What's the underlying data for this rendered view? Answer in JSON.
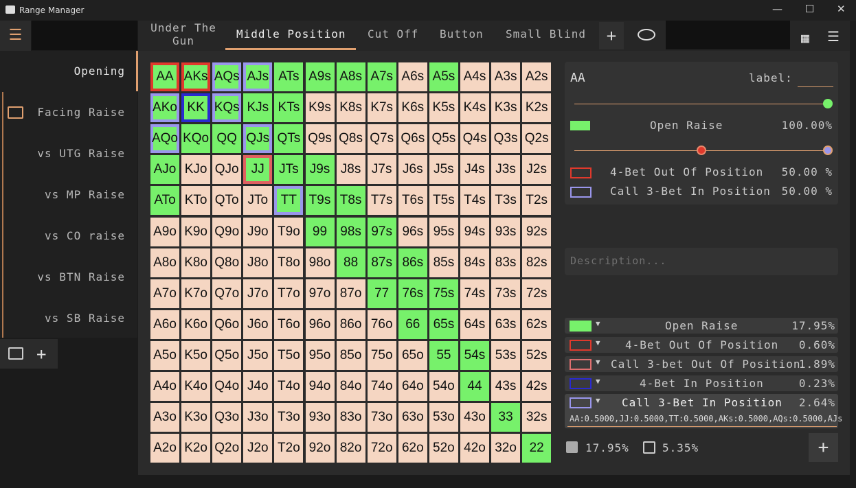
{
  "window": {
    "title": "Range Manager"
  },
  "sidebar": {
    "items": [
      "Opening",
      "Facing Raise",
      "vs UTG Raise",
      "vs MP Raise",
      "vs CO raise",
      "vs BTN Raise",
      "vs SB Raise"
    ]
  },
  "tabs": [
    "Under The Gun",
    "Middle Position",
    "Cut Off",
    "Button",
    "Small Blind"
  ],
  "grid": {
    "open_color": "#77f16b",
    "fold_color": "#f5d6c2",
    "rows": [
      [
        {
          "hand": "AA",
          "open": true,
          "border": "#e0392c"
        },
        {
          "hand": "AKs",
          "open": true,
          "border": "#e0392c"
        },
        {
          "hand": "AQs",
          "open": true,
          "border": "#9a96ec"
        },
        {
          "hand": "AJs",
          "open": true,
          "border": "#9a96ec"
        },
        {
          "hand": "ATs",
          "open": true
        },
        {
          "hand": "A9s",
          "open": true
        },
        {
          "hand": "A8s",
          "open": true
        },
        {
          "hand": "A7s",
          "open": true
        },
        {
          "hand": "A6s",
          "open": false
        },
        {
          "hand": "A5s",
          "open": true
        },
        {
          "hand": "A4s",
          "open": false
        },
        {
          "hand": "A3s",
          "open": false
        },
        {
          "hand": "A2s",
          "open": false
        }
      ],
      [
        {
          "hand": "AKo",
          "open": true,
          "border": "#9a96ec"
        },
        {
          "hand": "KK",
          "open": true,
          "border": "#2a2ad0"
        },
        {
          "hand": "KQs",
          "open": true,
          "border": "#9a96ec"
        },
        {
          "hand": "KJs",
          "open": true
        },
        {
          "hand": "KTs",
          "open": true
        },
        {
          "hand": "K9s",
          "open": false
        },
        {
          "hand": "K8s",
          "open": false
        },
        {
          "hand": "K7s",
          "open": false
        },
        {
          "hand": "K6s",
          "open": false
        },
        {
          "hand": "K5s",
          "open": false
        },
        {
          "hand": "K4s",
          "open": false
        },
        {
          "hand": "K3s",
          "open": false
        },
        {
          "hand": "K2s",
          "open": false
        }
      ],
      [
        {
          "hand": "AQo",
          "open": true,
          "border": "#9a96ec"
        },
        {
          "hand": "KQo",
          "open": true
        },
        {
          "hand": "QQ",
          "open": true
        },
        {
          "hand": "QJs",
          "open": true,
          "border": "#9a96ec"
        },
        {
          "hand": "QTs",
          "open": true
        },
        {
          "hand": "Q9s",
          "open": false
        },
        {
          "hand": "Q8s",
          "open": false
        },
        {
          "hand": "Q7s",
          "open": false
        },
        {
          "hand": "Q6s",
          "open": false
        },
        {
          "hand": "Q5s",
          "open": false
        },
        {
          "hand": "Q4s",
          "open": false
        },
        {
          "hand": "Q3s",
          "open": false
        },
        {
          "hand": "Q2s",
          "open": false
        }
      ],
      [
        {
          "hand": "AJo",
          "open": true
        },
        {
          "hand": "KJo",
          "open": false
        },
        {
          "hand": "QJo",
          "open": false
        },
        {
          "hand": "JJ",
          "open": true,
          "border": "#e06060"
        },
        {
          "hand": "JTs",
          "open": true
        },
        {
          "hand": "J9s",
          "open": true
        },
        {
          "hand": "J8s",
          "open": false
        },
        {
          "hand": "J7s",
          "open": false
        },
        {
          "hand": "J6s",
          "open": false
        },
        {
          "hand": "J5s",
          "open": false
        },
        {
          "hand": "J4s",
          "open": false
        },
        {
          "hand": "J3s",
          "open": false
        },
        {
          "hand": "J2s",
          "open": false
        }
      ],
      [
        {
          "hand": "ATo",
          "open": true
        },
        {
          "hand": "KTo",
          "open": false
        },
        {
          "hand": "QTo",
          "open": false
        },
        {
          "hand": "JTo",
          "open": false
        },
        {
          "hand": "TT",
          "open": true,
          "border": "#9a96ec"
        },
        {
          "hand": "T9s",
          "open": true
        },
        {
          "hand": "T8s",
          "open": true
        },
        {
          "hand": "T7s",
          "open": false
        },
        {
          "hand": "T6s",
          "open": false
        },
        {
          "hand": "T5s",
          "open": false
        },
        {
          "hand": "T4s",
          "open": false
        },
        {
          "hand": "T3s",
          "open": false
        },
        {
          "hand": "T2s",
          "open": false
        }
      ],
      [
        {
          "hand": "A9o",
          "open": false
        },
        {
          "hand": "K9o",
          "open": false
        },
        {
          "hand": "Q9o",
          "open": false
        },
        {
          "hand": "J9o",
          "open": false
        },
        {
          "hand": "T9o",
          "open": false
        },
        {
          "hand": "99",
          "open": true
        },
        {
          "hand": "98s",
          "open": true
        },
        {
          "hand": "97s",
          "open": true
        },
        {
          "hand": "96s",
          "open": false
        },
        {
          "hand": "95s",
          "open": false
        },
        {
          "hand": "94s",
          "open": false
        },
        {
          "hand": "93s",
          "open": false
        },
        {
          "hand": "92s",
          "open": false
        }
      ],
      [
        {
          "hand": "A8o",
          "open": false
        },
        {
          "hand": "K8o",
          "open": false
        },
        {
          "hand": "Q8o",
          "open": false
        },
        {
          "hand": "J8o",
          "open": false
        },
        {
          "hand": "T8o",
          "open": false
        },
        {
          "hand": "98o",
          "open": false
        },
        {
          "hand": "88",
          "open": true
        },
        {
          "hand": "87s",
          "open": true
        },
        {
          "hand": "86s",
          "open": true
        },
        {
          "hand": "85s",
          "open": false
        },
        {
          "hand": "84s",
          "open": false
        },
        {
          "hand": "83s",
          "open": false
        },
        {
          "hand": "82s",
          "open": false
        }
      ],
      [
        {
          "hand": "A7o",
          "open": false
        },
        {
          "hand": "K7o",
          "open": false
        },
        {
          "hand": "Q7o",
          "open": false
        },
        {
          "hand": "J7o",
          "open": false
        },
        {
          "hand": "T7o",
          "open": false
        },
        {
          "hand": "97o",
          "open": false
        },
        {
          "hand": "87o",
          "open": false
        },
        {
          "hand": "77",
          "open": true
        },
        {
          "hand": "76s",
          "open": true
        },
        {
          "hand": "75s",
          "open": true
        },
        {
          "hand": "74s",
          "open": false
        },
        {
          "hand": "73s",
          "open": false
        },
        {
          "hand": "72s",
          "open": false
        }
      ],
      [
        {
          "hand": "A6o",
          "open": false
        },
        {
          "hand": "K6o",
          "open": false
        },
        {
          "hand": "Q6o",
          "open": false
        },
        {
          "hand": "J6o",
          "open": false
        },
        {
          "hand": "T6o",
          "open": false
        },
        {
          "hand": "96o",
          "open": false
        },
        {
          "hand": "86o",
          "open": false
        },
        {
          "hand": "76o",
          "open": false
        },
        {
          "hand": "66",
          "open": true
        },
        {
          "hand": "65s",
          "open": true
        },
        {
          "hand": "64s",
          "open": false
        },
        {
          "hand": "63s",
          "open": false
        },
        {
          "hand": "62s",
          "open": false
        }
      ],
      [
        {
          "hand": "A5o",
          "open": false
        },
        {
          "hand": "K5o",
          "open": false
        },
        {
          "hand": "Q5o",
          "open": false
        },
        {
          "hand": "J5o",
          "open": false
        },
        {
          "hand": "T5o",
          "open": false
        },
        {
          "hand": "95o",
          "open": false
        },
        {
          "hand": "85o",
          "open": false
        },
        {
          "hand": "75o",
          "open": false
        },
        {
          "hand": "65o",
          "open": false
        },
        {
          "hand": "55",
          "open": true
        },
        {
          "hand": "54s",
          "open": true
        },
        {
          "hand": "53s",
          "open": false
        },
        {
          "hand": "52s",
          "open": false
        }
      ],
      [
        {
          "hand": "A4o",
          "open": false
        },
        {
          "hand": "K4o",
          "open": false
        },
        {
          "hand": "Q4o",
          "open": false
        },
        {
          "hand": "J4o",
          "open": false
        },
        {
          "hand": "T4o",
          "open": false
        },
        {
          "hand": "94o",
          "open": false
        },
        {
          "hand": "84o",
          "open": false
        },
        {
          "hand": "74o",
          "open": false
        },
        {
          "hand": "64o",
          "open": false
        },
        {
          "hand": "54o",
          "open": false
        },
        {
          "hand": "44",
          "open": true
        },
        {
          "hand": "43s",
          "open": false
        },
        {
          "hand": "42s",
          "open": false
        }
      ],
      [
        {
          "hand": "A3o",
          "open": false
        },
        {
          "hand": "K3o",
          "open": false
        },
        {
          "hand": "Q3o",
          "open": false
        },
        {
          "hand": "J3o",
          "open": false
        },
        {
          "hand": "T3o",
          "open": false
        },
        {
          "hand": "93o",
          "open": false
        },
        {
          "hand": "83o",
          "open": false
        },
        {
          "hand": "73o",
          "open": false
        },
        {
          "hand": "63o",
          "open": false
        },
        {
          "hand": "53o",
          "open": false
        },
        {
          "hand": "43o",
          "open": false
        },
        {
          "hand": "33",
          "open": true
        },
        {
          "hand": "32s",
          "open": false
        }
      ],
      [
        {
          "hand": "A2o",
          "open": false
        },
        {
          "hand": "K2o",
          "open": false
        },
        {
          "hand": "Q2o",
          "open": false
        },
        {
          "hand": "J2o",
          "open": false
        },
        {
          "hand": "T2o",
          "open": false
        },
        {
          "hand": "92o",
          "open": false
        },
        {
          "hand": "82o",
          "open": false
        },
        {
          "hand": "72o",
          "open": false
        },
        {
          "hand": "62o",
          "open": false
        },
        {
          "hand": "52o",
          "open": false
        },
        {
          "hand": "42o",
          "open": false
        },
        {
          "hand": "32o",
          "open": false
        },
        {
          "hand": "22",
          "open": true
        }
      ]
    ]
  },
  "detail": {
    "hand": "AA",
    "label": "label:",
    "actions": [
      {
        "name": "Open Raise",
        "value": "100.00%",
        "color": "#77f16b"
      },
      {
        "name": "4-Bet Out Of Position",
        "value": "50.00 %",
        "color": "#e0392c"
      },
      {
        "name": "Call 3-Bet In Position",
        "value": "50.00 %",
        "color": "#9a96ec"
      }
    ],
    "description_placeholder": "Description..."
  },
  "legend": {
    "items": [
      {
        "name": "Open Raise",
        "value": "17.95%",
        "color": "#77f16b",
        "fill": true
      },
      {
        "name": "4-Bet Out Of Position",
        "value": "0.60%",
        "color": "#e0392c"
      },
      {
        "name": "Call 3-bet Out Of Position",
        "value": "1.89%",
        "color": "#e07070"
      },
      {
        "name": "4-Bet In Position",
        "value": "0.23%",
        "color": "#2a2ad0"
      },
      {
        "name": "Call 3-Bet In Position",
        "value": "2.64%",
        "color": "#9a96ec"
      }
    ],
    "combos": "AA:0.5000,JJ:0.5000,TT:0.5000,AKs:0.5000,AQs:0.5000,AJs"
  },
  "footer": {
    "total": "17.95%",
    "unassigned": "5.35%"
  }
}
